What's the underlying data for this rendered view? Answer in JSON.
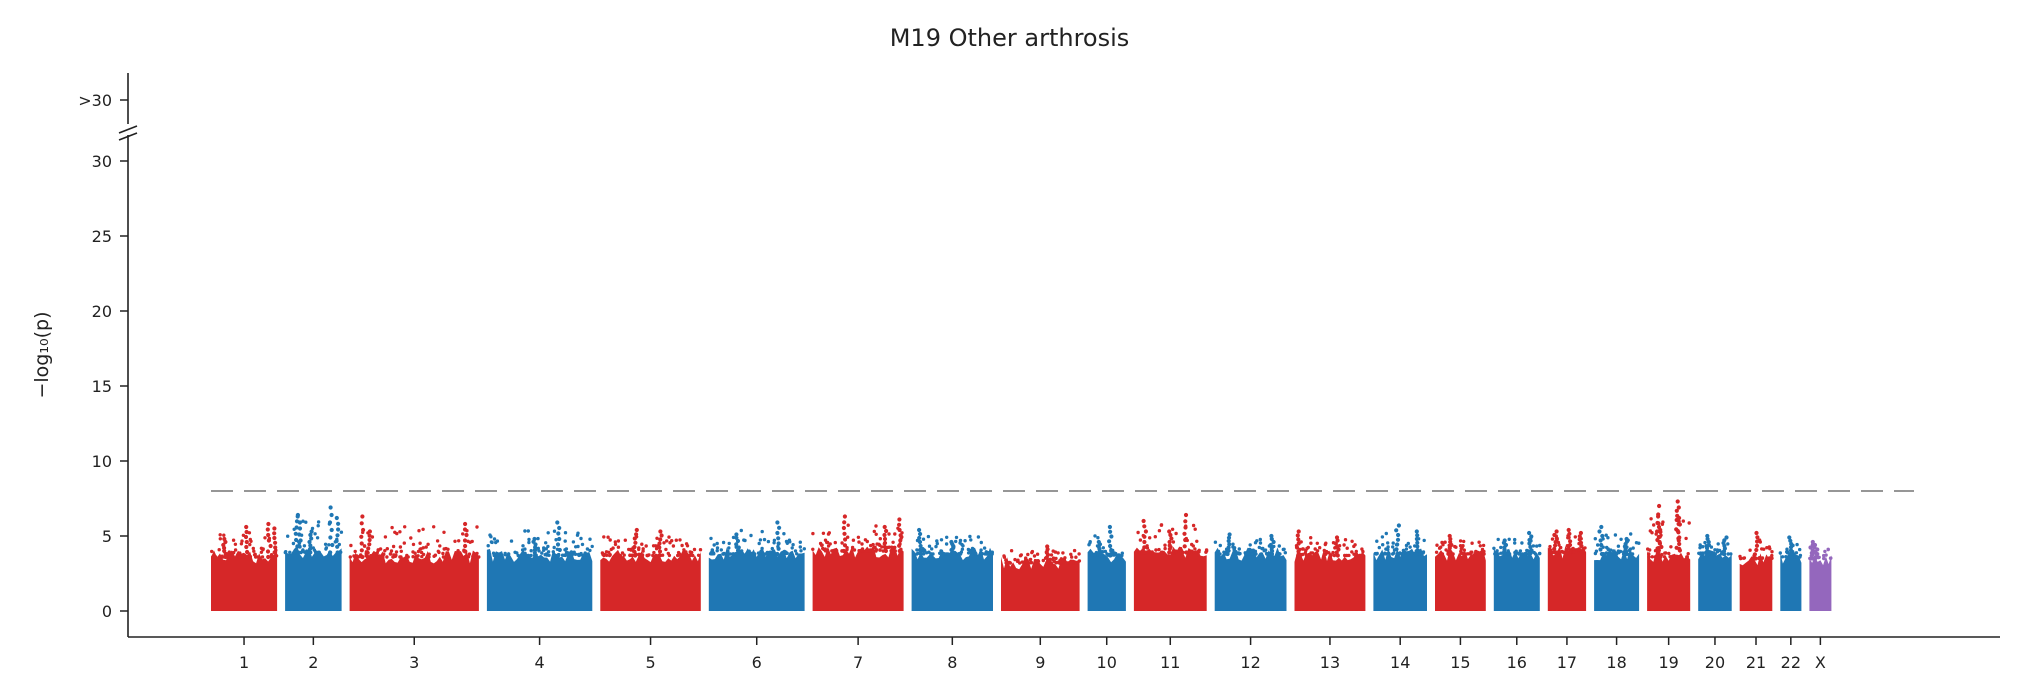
{
  "chart_data": {
    "type": "scatter",
    "title": "M19 Other arthrosis",
    "xlabel": "",
    "ylabel": "−log₁₀(p)",
    "ylim": [
      0,
      30
    ],
    "yticks": [
      0,
      5,
      10,
      15,
      20,
      25,
      30
    ],
    "ytick_top_label": ">30",
    "threshold": 8,
    "grid": false,
    "colors": {
      "odd_chromosome": "#d62728",
      "even_chromosome": "#1f77b4",
      "chromosome_x": "#9467bd",
      "threshold_line": "#888888"
    },
    "chromosomes": [
      {
        "label": "1",
        "color": "#d62728",
        "base": 3.6,
        "max": 5.8,
        "peaks": [
          {
            "pos": 0.2,
            "value": 4.8
          },
          {
            "pos": 0.55,
            "value": 5.6
          },
          {
            "pos": 0.88,
            "value": 5.8
          },
          {
            "pos": 0.95,
            "value": 5.5
          }
        ]
      },
      {
        "label": "2",
        "color": "#1f77b4",
        "base": 3.9,
        "max": 6.9,
        "peaks": [
          {
            "pos": 0.2,
            "value": 6.4
          },
          {
            "pos": 0.25,
            "value": 6.3
          },
          {
            "pos": 0.45,
            "value": 5.3
          },
          {
            "pos": 0.82,
            "value": 6.9
          },
          {
            "pos": 0.92,
            "value": 6.2
          }
        ]
      },
      {
        "label": "3",
        "color": "#d62728",
        "base": 3.6,
        "max": 6.3,
        "peaks": [
          {
            "pos": 0.1,
            "value": 6.3
          },
          {
            "pos": 0.15,
            "value": 5.3
          },
          {
            "pos": 0.9,
            "value": 5.8
          }
        ]
      },
      {
        "label": "4",
        "color": "#1f77b4",
        "base": 3.7,
        "max": 5.9,
        "peaks": [
          {
            "pos": 0.68,
            "value": 5.9
          },
          {
            "pos": 0.45,
            "value": 4.8
          }
        ]
      },
      {
        "label": "5",
        "color": "#d62728",
        "base": 3.7,
        "max": 5.4,
        "peaks": [
          {
            "pos": 0.35,
            "value": 5.4
          },
          {
            "pos": 0.6,
            "value": 5.3
          }
        ]
      },
      {
        "label": "6",
        "color": "#1f77b4",
        "base": 3.8,
        "max": 5.9,
        "peaks": [
          {
            "pos": 0.72,
            "value": 5.9
          },
          {
            "pos": 0.3,
            "value": 5.1
          }
        ]
      },
      {
        "label": "7",
        "color": "#d62728",
        "base": 4.0,
        "max": 6.3,
        "peaks": [
          {
            "pos": 0.35,
            "value": 6.3
          },
          {
            "pos": 0.8,
            "value": 5.6
          },
          {
            "pos": 0.96,
            "value": 6.1
          }
        ]
      },
      {
        "label": "8",
        "color": "#1f77b4",
        "base": 3.8,
        "max": 5.4,
        "peaks": [
          {
            "pos": 0.1,
            "value": 5.4
          },
          {
            "pos": 0.5,
            "value": 4.6
          }
        ]
      },
      {
        "label": "9",
        "color": "#d62728",
        "base": 3.2,
        "max": 4.3,
        "peaks": [
          {
            "pos": 0.6,
            "value": 4.3
          }
        ]
      },
      {
        "label": "10",
        "color": "#1f77b4",
        "base": 3.7,
        "max": 5.6,
        "peaks": [
          {
            "pos": 0.6,
            "value": 5.6
          },
          {
            "pos": 0.3,
            "value": 4.6
          }
        ]
      },
      {
        "label": "11",
        "color": "#d62728",
        "base": 3.9,
        "max": 6.4,
        "peaks": [
          {
            "pos": 0.15,
            "value": 6.0
          },
          {
            "pos": 0.5,
            "value": 5.3
          },
          {
            "pos": 0.7,
            "value": 6.4
          }
        ]
      },
      {
        "label": "12",
        "color": "#1f77b4",
        "base": 3.8,
        "max": 5.1,
        "peaks": [
          {
            "pos": 0.2,
            "value": 5.1
          },
          {
            "pos": 0.8,
            "value": 5.0
          }
        ]
      },
      {
        "label": "13",
        "color": "#d62728",
        "base": 3.7,
        "max": 5.3,
        "peaks": [
          {
            "pos": 0.05,
            "value": 5.3
          },
          {
            "pos": 0.6,
            "value": 4.9
          }
        ]
      },
      {
        "label": "14",
        "color": "#1f77b4",
        "base": 3.8,
        "max": 5.7,
        "peaks": [
          {
            "pos": 0.45,
            "value": 5.7
          },
          {
            "pos": 0.8,
            "value": 5.3
          }
        ]
      },
      {
        "label": "15",
        "color": "#d62728",
        "base": 3.8,
        "max": 5.0,
        "peaks": [
          {
            "pos": 0.3,
            "value": 5.0
          }
        ]
      },
      {
        "label": "16",
        "color": "#1f77b4",
        "base": 3.8,
        "max": 5.2,
        "peaks": [
          {
            "pos": 0.8,
            "value": 5.2
          },
          {
            "pos": 0.25,
            "value": 4.7
          }
        ]
      },
      {
        "label": "17",
        "color": "#d62728",
        "base": 3.9,
        "max": 5.4,
        "peaks": [
          {
            "pos": 0.2,
            "value": 5.3
          },
          {
            "pos": 0.55,
            "value": 5.4
          },
          {
            "pos": 0.85,
            "value": 5.2
          }
        ]
      },
      {
        "label": "18",
        "color": "#1f77b4",
        "base": 3.8,
        "max": 5.6,
        "peaks": [
          {
            "pos": 0.15,
            "value": 5.6
          },
          {
            "pos": 0.7,
            "value": 4.8
          }
        ]
      },
      {
        "label": "19",
        "color": "#d62728",
        "base": 3.6,
        "max": 7.3,
        "peaks": [
          {
            "pos": 0.25,
            "value": 7.0
          },
          {
            "pos": 0.28,
            "value": 6.3
          },
          {
            "pos": 0.3,
            "value": 5.6
          },
          {
            "pos": 0.7,
            "value": 7.3
          },
          {
            "pos": 0.72,
            "value": 6.9
          },
          {
            "pos": 0.74,
            "value": 6.2
          }
        ]
      },
      {
        "label": "20",
        "color": "#1f77b4",
        "base": 3.8,
        "max": 5.0,
        "peaks": [
          {
            "pos": 0.3,
            "value": 5.0
          },
          {
            "pos": 0.8,
            "value": 4.9
          }
        ]
      },
      {
        "label": "21",
        "color": "#d62728",
        "base": 3.5,
        "max": 5.2,
        "peaks": [
          {
            "pos": 0.5,
            "value": 5.2
          }
        ]
      },
      {
        "label": "22",
        "color": "#1f77b4",
        "base": 3.6,
        "max": 4.9,
        "peaks": [
          {
            "pos": 0.5,
            "value": 4.9
          }
        ]
      },
      {
        "label": "X",
        "color": "#9467bd",
        "base": 3.5,
        "max": 4.6,
        "peaks": [
          {
            "pos": 0.1,
            "value": 4.6
          },
          {
            "pos": 0.3,
            "value": 4.4
          }
        ]
      }
    ]
  }
}
